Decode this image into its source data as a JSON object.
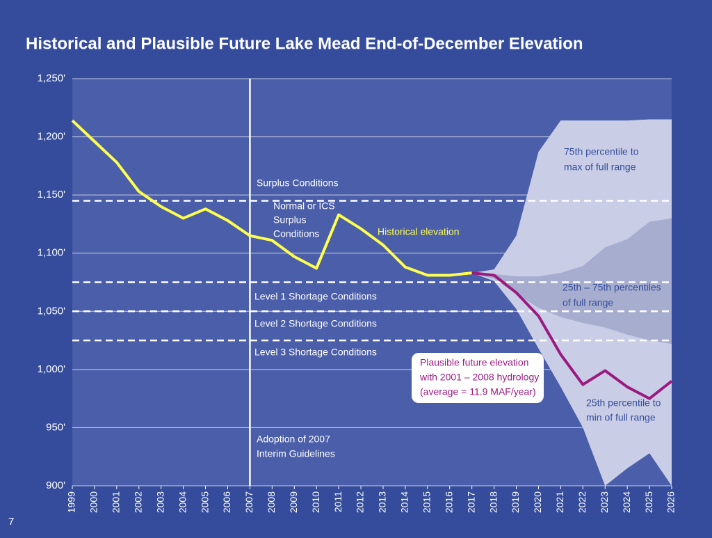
{
  "chart_data": {
    "type": "line",
    "title": "Historical and Plausible Future Lake Mead End-of-December Elevation",
    "page_number": "7",
    "x": [
      1999,
      2000,
      2001,
      2002,
      2003,
      2004,
      2005,
      2006,
      2007,
      2008,
      2009,
      2010,
      2011,
      2012,
      2013,
      2014,
      2015,
      2016,
      2017,
      2018,
      2019,
      2020,
      2021,
      2022,
      2023,
      2024,
      2025,
      2026
    ],
    "xlim": [
      1999,
      2026
    ],
    "xticks": [
      1999,
      2000,
      2001,
      2002,
      2003,
      2004,
      2005,
      2006,
      2007,
      2008,
      2009,
      2010,
      2011,
      2012,
      2013,
      2014,
      2015,
      2016,
      2017,
      2018,
      2019,
      2020,
      2021,
      2022,
      2023,
      2024,
      2025,
      2026
    ],
    "ylim": [
      900,
      1250
    ],
    "yticks": [
      {
        "value": 900,
        "label": "900'"
      },
      {
        "value": 950,
        "label": "950'"
      },
      {
        "value": 1000,
        "label": "1,000'"
      },
      {
        "value": 1050,
        "label": "1,050'"
      },
      {
        "value": 1100,
        "label": "1,100'"
      },
      {
        "value": 1150,
        "label": "1,150'"
      },
      {
        "value": 1200,
        "label": "1,200'"
      },
      {
        "value": 1250,
        "label": "1,250'"
      }
    ],
    "grid": true,
    "bands": [
      {
        "color": "#c9cee6",
        "high": [
          null,
          null,
          null,
          null,
          null,
          null,
          null,
          null,
          null,
          null,
          null,
          null,
          null,
          null,
          null,
          null,
          null,
          null,
          1083,
          1086,
          1115,
          1187,
          1214,
          1214,
          1214,
          1214,
          1215,
          1215
        ],
        "low": [
          null,
          null,
          null,
          null,
          null,
          null,
          null,
          null,
          null,
          null,
          null,
          null,
          null,
          null,
          null,
          null,
          null,
          null,
          1083,
          1076,
          1052,
          1018,
          985,
          950,
          900,
          915,
          928,
          900
        ]
      },
      {
        "color": "#a6adcf",
        "high": [
          null,
          null,
          null,
          null,
          null,
          null,
          null,
          null,
          null,
          null,
          null,
          null,
          null,
          null,
          null,
          null,
          null,
          null,
          1083,
          1082,
          1080,
          1080,
          1083,
          1089,
          1105,
          1112,
          1127,
          1130
        ],
        "low": [
          null,
          null,
          null,
          null,
          null,
          null,
          null,
          null,
          null,
          null,
          null,
          null,
          null,
          null,
          null,
          null,
          null,
          null,
          1083,
          1078,
          1065,
          1053,
          1045,
          1040,
          1036,
          1030,
          1025,
          1022
        ]
      }
    ],
    "series": [
      {
        "color": "#ffff4d",
        "values": [
          1214,
          1196,
          1178,
          1153,
          1140,
          1130,
          1138,
          1128,
          1115,
          1111,
          1097,
          1087,
          1133,
          1121,
          1107,
          1088,
          1081,
          1081,
          1083,
          null,
          null,
          null,
          null,
          null,
          null,
          null,
          null,
          null
        ]
      },
      {
        "color": "#9b1a80",
        "values": [
          null,
          null,
          null,
          null,
          null,
          null,
          null,
          null,
          null,
          null,
          null,
          null,
          null,
          null,
          null,
          null,
          null,
          null,
          1083,
          1081,
          1066,
          1046,
          1013,
          987,
          999,
          985,
          975,
          990
        ]
      }
    ],
    "thresholds": [
      1145,
      1075,
      1050,
      1025
    ],
    "vline": 2007,
    "annotations": {
      "surplus": [
        "Surplus Conditions"
      ],
      "normal": [
        "Normal or ICS",
        "Surplus",
        "Conditions"
      ],
      "level1": [
        "Level 1 Shortage Conditions"
      ],
      "level2": [
        "Level 2 Shortage Conditions"
      ],
      "level3": [
        "Level 3 Shortage Conditions"
      ],
      "adoption": [
        "Adoption of 2007",
        "Interim Guidelines"
      ],
      "historical": [
        "Historical elevation"
      ],
      "upper": [
        "75th percentile to",
        "max of full range"
      ],
      "middle": [
        "25th – 75th percentiles",
        "of full range"
      ],
      "lower": [
        "25th percentile to",
        "min of full range"
      ],
      "future": [
        "Plausible future elevation",
        "with 2001 – 2008 hydrology",
        "(average = 11.9 MAF/year)"
      ]
    }
  }
}
